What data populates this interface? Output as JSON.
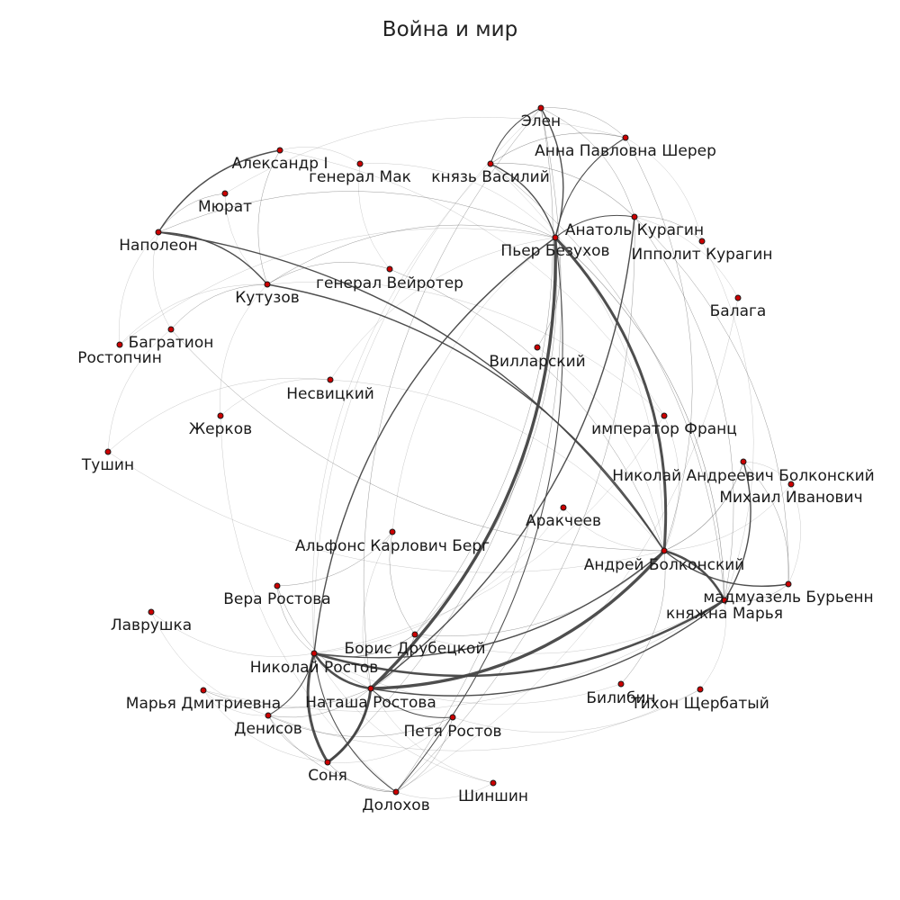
{
  "title": "Война и мир",
  "colors": {
    "node_fill": "#cc0000",
    "node_stroke": "#1a1a1a",
    "edge": "#444444",
    "background": "#ffffff"
  },
  "nodes": [
    {
      "id": "elen",
      "label": "Элен"
    },
    {
      "id": "anna",
      "label": "Анна Павловна Шерер"
    },
    {
      "id": "alexander",
      "label": "Александр I"
    },
    {
      "id": "mak",
      "label": "генерал Мак"
    },
    {
      "id": "vasily",
      "label": "князь Василий"
    },
    {
      "id": "murat",
      "label": "Мюрат"
    },
    {
      "id": "napoleon",
      "label": "Наполеон"
    },
    {
      "id": "anatol",
      "label": "Анатоль Курагин"
    },
    {
      "id": "pierre",
      "label": "Пьер Безухов"
    },
    {
      "id": "ippolit",
      "label": "Ипполит Курагин"
    },
    {
      "id": "weyrother",
      "label": "генерал Вейротер"
    },
    {
      "id": "kutuzov",
      "label": "Кутузов"
    },
    {
      "id": "balaga",
      "label": "Балага"
    },
    {
      "id": "bagration",
      "label": "Багратион"
    },
    {
      "id": "rostopchin",
      "label": "Ростопчин"
    },
    {
      "id": "villarsky",
      "label": "Вилларский"
    },
    {
      "id": "nesvitsky",
      "label": "Несвицкий"
    },
    {
      "id": "zherkov",
      "label": "Жерков"
    },
    {
      "id": "franz",
      "label": "император Франц"
    },
    {
      "id": "tushin",
      "label": "Тушин"
    },
    {
      "id": "nab",
      "label": "Николай Андреевич Болконский"
    },
    {
      "id": "mikhail",
      "label": "Михаил Иванович"
    },
    {
      "id": "arakcheev",
      "label": "Аракчеев"
    },
    {
      "id": "berg",
      "label": "Альфонс Карлович Берг"
    },
    {
      "id": "andrei",
      "label": "Андрей Болконский"
    },
    {
      "id": "bourienne",
      "label": "мадмуазель Бурьенн"
    },
    {
      "id": "vera",
      "label": "Вера Ростова"
    },
    {
      "id": "marya",
      "label": "княжна Марья"
    },
    {
      "id": "lavrushka",
      "label": "Лаврушка"
    },
    {
      "id": "boris",
      "label": "Борис Друбецкой"
    },
    {
      "id": "nikolai",
      "label": "Николай Ростов"
    },
    {
      "id": "md",
      "label": "Марья Дмитриевна"
    },
    {
      "id": "natasha",
      "label": "Наташа Ростова"
    },
    {
      "id": "bilibin",
      "label": "Билибин"
    },
    {
      "id": "tikhon",
      "label": "Тихон Щербатый"
    },
    {
      "id": "denisov",
      "label": "Денисов"
    },
    {
      "id": "petya",
      "label": "Петя Ростов"
    },
    {
      "id": "sonya",
      "label": "Соня"
    },
    {
      "id": "shinshin",
      "label": "Шиншин"
    },
    {
      "id": "dolokhov",
      "label": "Долохов"
    }
  ],
  "edges": [
    [
      "natasha",
      "pierre",
      4
    ],
    [
      "natasha",
      "andrei",
      4
    ],
    [
      "pierre",
      "andrei",
      3.5
    ],
    [
      "nikolai",
      "sonya",
      3.5
    ],
    [
      "natasha",
      "sonya",
      3.5
    ],
    [
      "nikolai",
      "natasha",
      3
    ],
    [
      "nikolai",
      "marya",
      3
    ],
    [
      "andrei",
      "marya",
      3
    ],
    [
      "pierre",
      "elen",
      2
    ],
    [
      "vasily",
      "pierre",
      2
    ],
    [
      "napoleon",
      "alexander",
      2
    ],
    [
      "napoleon",
      "kutuzov",
      2
    ],
    [
      "napoleon",
      "andrei",
      2
    ],
    [
      "kutuzov",
      "andrei",
      2
    ],
    [
      "andrei",
      "bourienne",
      2
    ],
    [
      "nab",
      "marya",
      2
    ],
    [
      "natasha",
      "anatol",
      2
    ],
    [
      "nikolai",
      "andrei",
      2
    ],
    [
      "pierre",
      "nikolai",
      2
    ],
    [
      "natasha",
      "marya",
      2
    ],
    [
      "sonya",
      "natasha",
      2
    ],
    [
      "pierre",
      "anna",
      1.5
    ],
    [
      "vasily",
      "elen",
      1.5
    ],
    [
      "anatol",
      "pierre",
      1.5
    ],
    [
      "anatol",
      "ippolit",
      1
    ],
    [
      "nikolai",
      "denisov",
      1.5
    ],
    [
      "nikolai",
      "dolokhov",
      1.5
    ],
    [
      "natasha",
      "petya",
      1.5
    ],
    [
      "pierre",
      "dolokhov",
      1.5
    ],
    [
      "boris",
      "nikolai",
      1.2
    ],
    [
      "anna",
      "vasily",
      1.2
    ],
    [
      "anna",
      "elen",
      1
    ],
    [
      "elen",
      "anatol",
      1
    ],
    [
      "elen",
      "boris",
      1
    ],
    [
      "vasily",
      "anatol",
      1.2
    ],
    [
      "vasily",
      "marya",
      1
    ],
    [
      "anatol",
      "marya",
      1
    ],
    [
      "anatol",
      "bourienne",
      1
    ],
    [
      "nab",
      "bourienne",
      1
    ],
    [
      "nab",
      "mikhail",
      0.8
    ],
    [
      "nab",
      "andrei",
      1.2
    ],
    [
      "pierre",
      "villarsky",
      1
    ],
    [
      "pierre",
      "boris",
      1
    ],
    [
      "pierre",
      "natasha",
      1
    ],
    [
      "andrei",
      "bilibin",
      1
    ],
    [
      "andrei",
      "franz",
      0.8
    ],
    [
      "andrei",
      "arakcheev",
      0.8
    ],
    [
      "andrei",
      "weyrother",
      1
    ],
    [
      "andrei",
      "bagration",
      1
    ],
    [
      "andrei",
      "nesvitsky",
      0.8
    ],
    [
      "kutuzov",
      "bagration",
      1
    ],
    [
      "kutuzov",
      "weyrother",
      1
    ],
    [
      "kutuzov",
      "franz",
      0.8
    ],
    [
      "alexander",
      "kutuzov",
      1
    ],
    [
      "alexander",
      "franz",
      0.8
    ],
    [
      "alexander",
      "mak",
      0.8
    ],
    [
      "napoleon",
      "murat",
      1
    ],
    [
      "napoleon",
      "bagration",
      0.8
    ],
    [
      "rostopchin",
      "kutuzov",
      0.8
    ],
    [
      "rostopchin",
      "pierre",
      0.8
    ],
    [
      "bagration",
      "tushin",
      0.8
    ],
    [
      "tushin",
      "nesvitsky",
      0.8
    ],
    [
      "zherkov",
      "nesvitsky",
      0.8
    ],
    [
      "zherkov",
      "dolokhov",
      0.8
    ],
    [
      "nesvitsky",
      "pierre",
      0.8
    ],
    [
      "denisov",
      "sonya",
      1
    ],
    [
      "denisov",
      "natasha",
      1
    ],
    [
      "denisov",
      "petya",
      1
    ],
    [
      "denisov",
      "dolokhov",
      1
    ],
    [
      "petya",
      "dolokhov",
      1
    ],
    [
      "petya",
      "tikhon",
      0.8
    ],
    [
      "tikhon",
      "denisov",
      0.8
    ],
    [
      "dolokhov",
      "anatol",
      1
    ],
    [
      "dolokhov",
      "sonya",
      1
    ],
    [
      "shinshin",
      "natasha",
      0.8
    ],
    [
      "shinshin",
      "nikolai",
      0.8
    ],
    [
      "md",
      "natasha",
      1
    ],
    [
      "md",
      "sonya",
      0.8
    ],
    [
      "md",
      "marya",
      0.8
    ],
    [
      "vera",
      "berg",
      1
    ],
    [
      "vera",
      "nikolai",
      1
    ],
    [
      "vera",
      "natasha",
      1
    ],
    [
      "berg",
      "boris",
      1
    ],
    [
      "berg",
      "pierre",
      0.8
    ],
    [
      "berg",
      "natasha",
      0.8
    ],
    [
      "boris",
      "natasha",
      1
    ],
    [
      "boris",
      "andrei",
      1
    ],
    [
      "boris",
      "marya",
      0.8
    ],
    [
      "lavrushka",
      "nikolai",
      0.8
    ],
    [
      "lavrushka",
      "denisov",
      0.8
    ],
    [
      "balaga",
      "anatol",
      0.8
    ],
    [
      "balaga",
      "dolokhov",
      0.8
    ],
    [
      "marya",
      "tikhon",
      0.8
    ],
    [
      "marya",
      "bourienne",
      1
    ],
    [
      "pierre",
      "marya",
      1.2
    ],
    [
      "pierre",
      "sonya",
      1
    ],
    [
      "pierre",
      "kutuzov",
      1
    ],
    [
      "pierre",
      "napoleon",
      1
    ],
    [
      "pierre",
      "mak",
      0.6
    ],
    [
      "elen",
      "natasha",
      1
    ],
    [
      "elen",
      "dolokhov",
      1
    ],
    [
      "elen",
      "nikolai",
      0.8
    ],
    [
      "anna",
      "andrei",
      1
    ],
    [
      "anna",
      "ippolit",
      0.8
    ],
    [
      "anna",
      "murat",
      0.6
    ],
    [
      "villarsky",
      "andrei",
      0.8
    ],
    [
      "mikhail",
      "andrei",
      0.8
    ],
    [
      "mikhail",
      "bourienne",
      0.6
    ],
    [
      "arakcheev",
      "nikolai",
      0.6
    ],
    [
      "bilibin",
      "nikolai",
      0.6
    ],
    [
      "ippolit",
      "marya",
      0.6
    ],
    [
      "weyrother",
      "mak",
      0.6
    ],
    [
      "murat",
      "kutuzov",
      0.6
    ],
    [
      "franz",
      "nikolai",
      0.6
    ],
    [
      "vasily",
      "andrei",
      0.8
    ],
    [
      "vasily",
      "nikolai",
      0.6
    ],
    [
      "tushin",
      "andrei",
      0.6
    ],
    [
      "zherkov",
      "kutuzov",
      0.6
    ],
    [
      "rostopchin",
      "napoleon",
      0.6
    ],
    [
      "sonya",
      "dolokhov",
      0.8
    ],
    [
      "petya",
      "sonya",
      0.6
    ],
    [
      "shinshin",
      "dolokhov",
      0.6
    ],
    [
      "md",
      "denisov",
      0.6
    ]
  ]
}
